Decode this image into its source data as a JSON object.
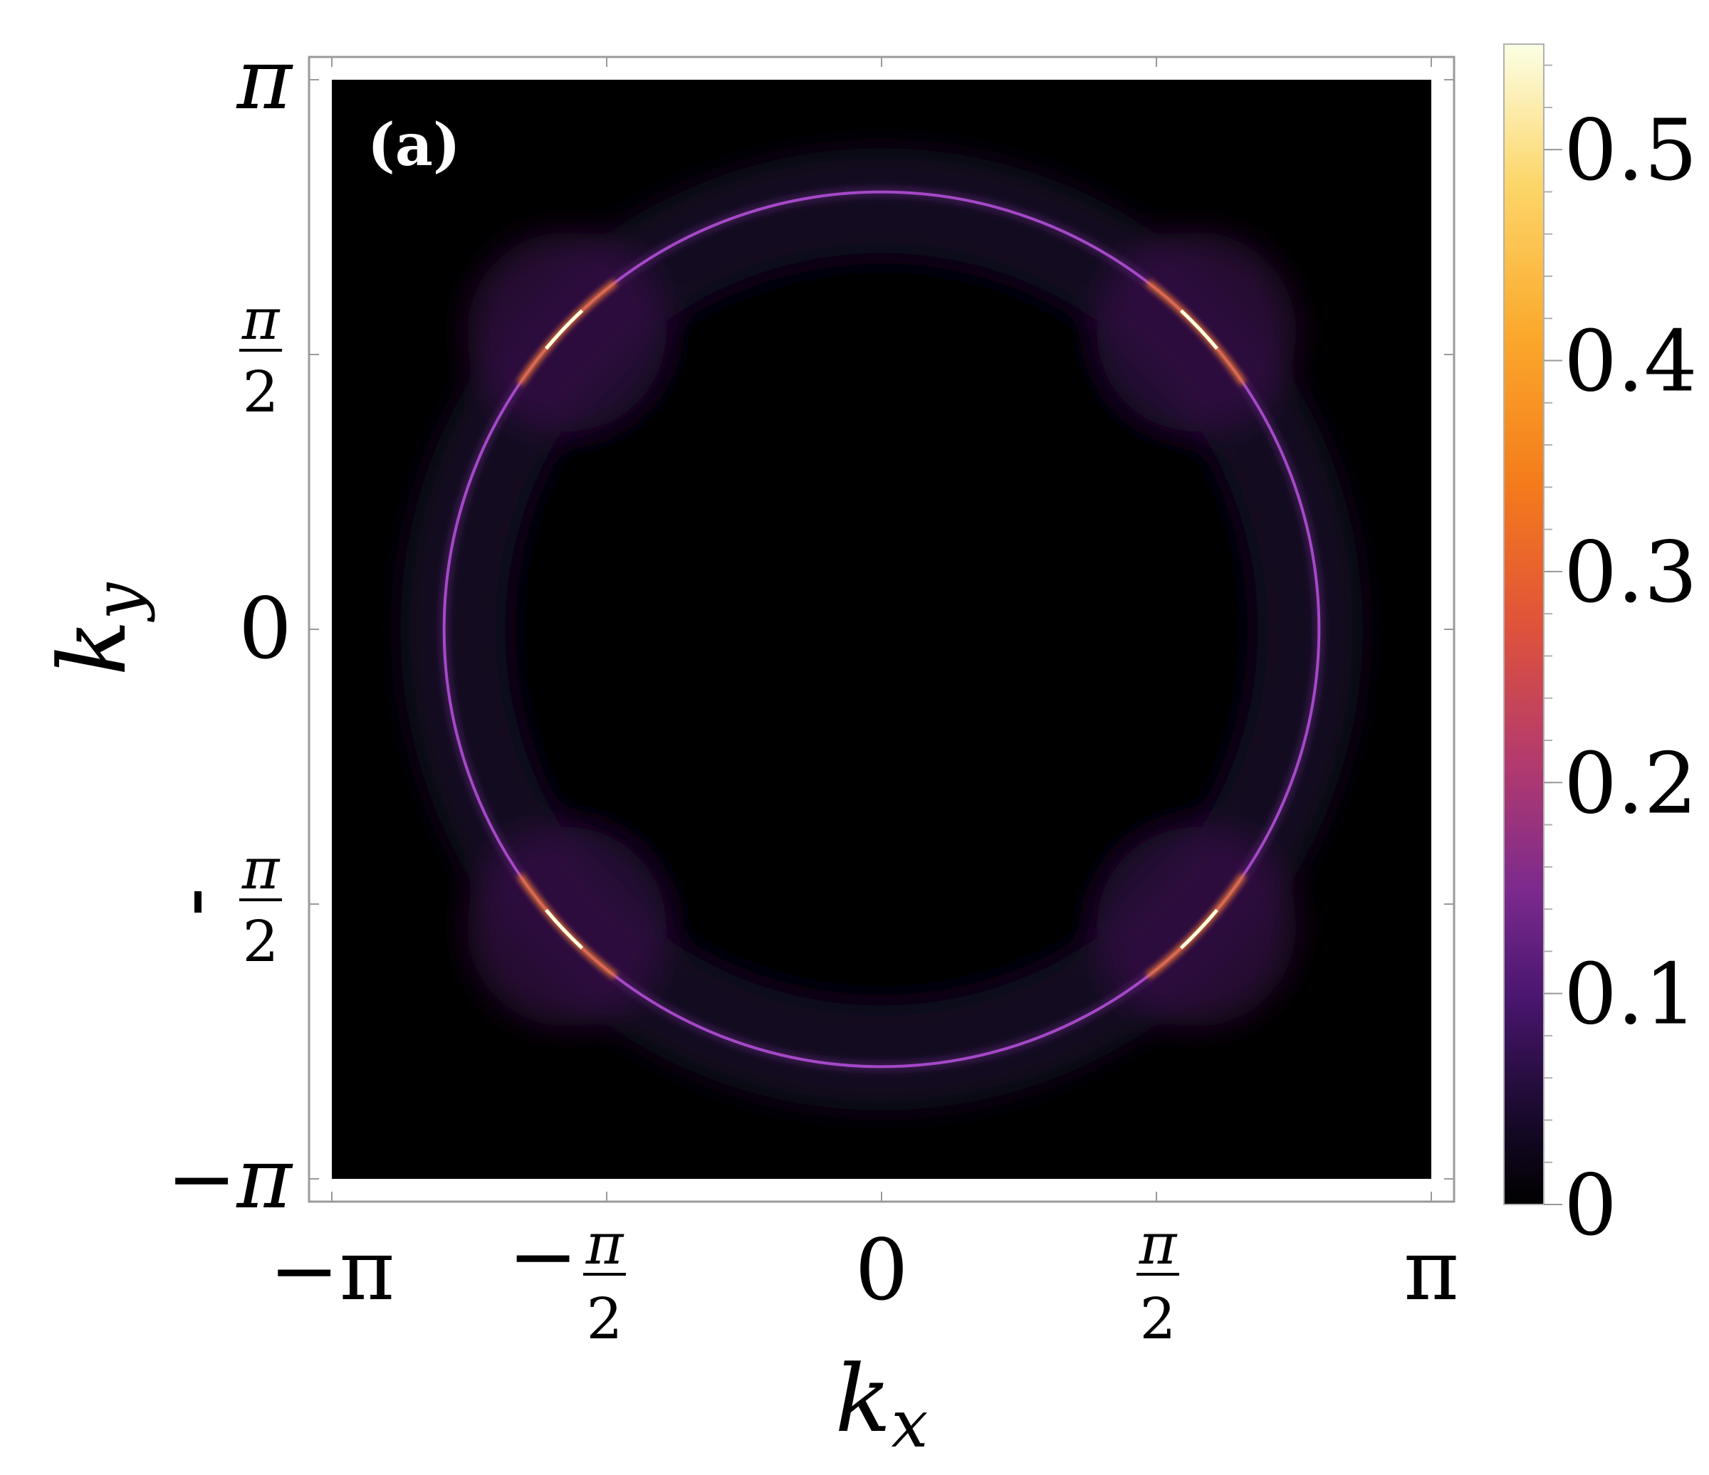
{
  "chart_data": {
    "type": "heatmap",
    "panel_label": "(a)",
    "xlabel": "k",
    "xlabel_sub": "x",
    "ylabel": "k",
    "ylabel_sub": "y",
    "xlim": [
      -3.14159,
      3.14159
    ],
    "ylim": [
      -3.14159,
      3.14159
    ],
    "x_ticks": [
      {
        "value": -3.14159,
        "label": "−π"
      },
      {
        "value": -1.5708,
        "label": "−",
        "frac": "π/2"
      },
      {
        "value": 0,
        "label": "0"
      },
      {
        "value": 1.5708,
        "label": "",
        "frac": "π/2"
      },
      {
        "value": 3.14159,
        "label": "π"
      }
    ],
    "y_ticks": [
      {
        "value": 3.14159,
        "label": "π"
      },
      {
        "value": 1.5708,
        "label": "",
        "frac": "π/2"
      },
      {
        "value": 0,
        "label": "0"
      },
      {
        "value": -1.5708,
        "label": "−",
        "frac": "π/2"
      },
      {
        "value": -3.14159,
        "label": "−π"
      }
    ],
    "colorbar": {
      "range": [
        0,
        0.55
      ],
      "ticks": [
        {
          "value": 0,
          "label": "0"
        },
        {
          "value": 0.1,
          "label": "0.1"
        },
        {
          "value": 0.2,
          "label": "0.2"
        },
        {
          "value": 0.3,
          "label": "0.3"
        },
        {
          "value": 0.4,
          "label": "0.4"
        },
        {
          "value": 0.5,
          "label": "0.5"
        }
      ],
      "colormap": [
        "#000000",
        "#1a0a2e",
        "#4a1670",
        "#7b2a8e",
        "#b23a6e",
        "#e0533a",
        "#f47b1b",
        "#fba92c",
        "#fcd66a",
        "#fcffe4"
      ]
    },
    "features": {
      "ring_radius": 2.5,
      "ring_peak_value": 0.1,
      "hotspots": [
        {
          "kx": -1.8,
          "ky": 1.7,
          "value": 0.55
        },
        {
          "kx": 1.8,
          "ky": 1.7,
          "value": 0.5
        },
        {
          "kx": -1.8,
          "ky": -1.7,
          "value": 0.45
        },
        {
          "kx": 1.8,
          "ky": -1.7,
          "value": 0.55
        }
      ],
      "background_value": 0
    }
  }
}
